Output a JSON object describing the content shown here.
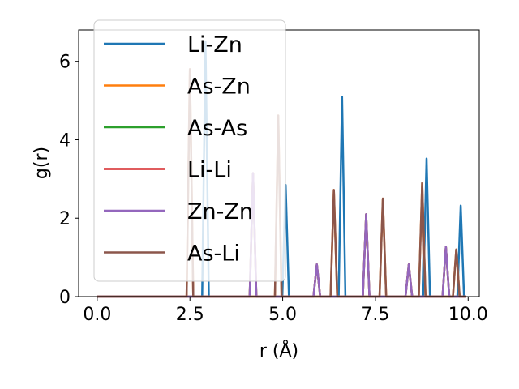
{
  "chart_data": {
    "type": "line",
    "xlabel": "r (Å)",
    "ylabel": "g(r)",
    "xlim": [
      -0.5,
      10.3
    ],
    "ylim": [
      0,
      6.8
    ],
    "xticks": [
      0.0,
      2.5,
      5.0,
      7.5,
      10.0
    ],
    "xtick_labels": [
      "0.0",
      "2.5",
      "5.0",
      "7.5",
      "10.0"
    ],
    "yticks": [
      0,
      2,
      4,
      6
    ],
    "ytick_labels": [
      "0",
      "2",
      "4",
      "6"
    ],
    "grid": false,
    "legend_position": "top-left",
    "series": [
      {
        "name": "Li-Zn",
        "color": "#1f77b4",
        "peaks": [
          [
            2.92,
            6.5
          ],
          [
            5.08,
            2.85
          ],
          [
            6.6,
            5.1
          ],
          [
            8.88,
            3.52
          ],
          [
            9.8,
            2.32
          ]
        ]
      },
      {
        "name": "As-Zn",
        "color": "#ff7f0e",
        "peaks": [
          [
            2.5,
            5.8
          ],
          [
            4.88,
            4.62
          ],
          [
            6.38,
            2.72
          ],
          [
            7.7,
            2.5
          ],
          [
            8.76,
            2.9
          ],
          [
            9.68,
            1.2
          ]
        ]
      },
      {
        "name": "As-As",
        "color": "#2ca02c",
        "peaks": [
          [
            4.2,
            3.15
          ],
          [
            5.92,
            0.82
          ],
          [
            7.25,
            2.1
          ],
          [
            8.4,
            0.82
          ],
          [
            9.4,
            1.27
          ]
        ]
      },
      {
        "name": "Li-Li",
        "color": "#d62728",
        "peaks": [
          [
            4.2,
            3.15
          ],
          [
            5.92,
            0.82
          ],
          [
            7.25,
            2.1
          ],
          [
            8.4,
            0.82
          ],
          [
            9.4,
            1.27
          ]
        ]
      },
      {
        "name": "Zn-Zn",
        "color": "#9467bd",
        "peaks": [
          [
            4.2,
            3.15
          ],
          [
            5.92,
            0.82
          ],
          [
            7.25,
            2.1
          ],
          [
            8.4,
            0.82
          ],
          [
            9.4,
            1.27
          ]
        ]
      },
      {
        "name": "As-Li",
        "color": "#8c564b",
        "peaks": [
          [
            2.5,
            5.8
          ],
          [
            4.88,
            4.62
          ],
          [
            6.38,
            2.72
          ],
          [
            7.7,
            2.5
          ],
          [
            8.76,
            2.9
          ],
          [
            9.68,
            1.2
          ]
        ]
      }
    ]
  }
}
